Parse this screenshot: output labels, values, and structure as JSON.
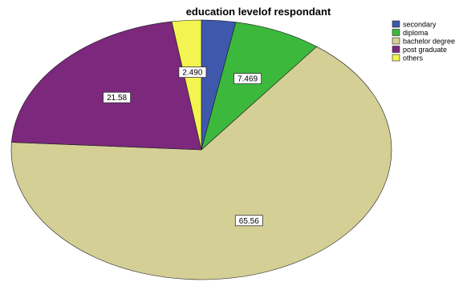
{
  "chart_data": {
    "type": "pie",
    "title": "education levelof respondant",
    "legend_position": "top-right",
    "categories": [
      "secondary",
      "diploma",
      "bachelor degree",
      "post graduate",
      "others"
    ],
    "values": [
      2.901,
      7.469,
      65.56,
      21.58,
      2.49
    ],
    "data_labels": [
      "",
      "7.469",
      "65.56",
      "21.58",
      "2.490"
    ],
    "colors": [
      "#3e58ac",
      "#3cb93c",
      "#d4cf95",
      "#7b287d",
      "#f3f352"
    ]
  }
}
